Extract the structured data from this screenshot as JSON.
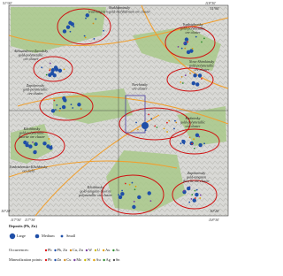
{
  "map": {
    "corner_labels": [
      "51°00'",
      "117°30'",
      "118°30'",
      "118°30'",
      "51°00'",
      "50°20'",
      "117°30'",
      "50°20'"
    ],
    "cluster_labels": [
      {
        "lines": [
          "Shakhtaminsky",
          "lead-tungsten-gold-molybdenum ore cluster"
        ]
      },
      {
        "lines": [
          "Vozdvizhensky",
          "gold-polymetallic",
          "ore cluster"
        ]
      },
      {
        "lines": [
          "Aleksandrovo-Zavodsky",
          "gold-polymetallic",
          "ore cluster"
        ]
      },
      {
        "lines": [
          "Novo-Shirokinsky",
          "gold-polymetallic",
          "ore cluster"
        ]
      },
      {
        "lines": [
          "Zapokrovsky",
          "gold-polymetallic",
          "ore cluster"
        ]
      },
      {
        "lines": [
          "Nerchinsky",
          "ore cluster"
        ]
      },
      {
        "lines": [
          "Klichkinsky",
          "gold-polymetallic",
          "fluorite ore cluster"
        ]
      },
      {
        "lines": [
          "Kadainsky",
          "gold-polymetallic",
          "ore cluster"
        ]
      },
      {
        "lines": [
          "Vozdvizhensko-Klichkinsky",
          "ore field"
        ]
      },
      {
        "lines": [
          "Klichkinsky",
          "gold-tungsten-fluorite",
          "polymetallic ore cluster"
        ]
      },
      {
        "lines": [
          "Zapokrovsky",
          "gold-tungsten",
          "fluorite ore cluster"
        ]
      }
    ]
  },
  "legend": {
    "title": "Deposits (Pb, Zn)",
    "sizes": [
      "Large",
      "Medium",
      "Small"
    ],
    "occurrences_label": "Occurrences:",
    "occurrence_elements": [
      {
        "label": "Pb",
        "color": "#e01b1b"
      },
      {
        "label": "Pb, Zn",
        "color": "#1f4fa8"
      },
      {
        "label": "Cu, Zn",
        "color": "#d08a1a"
      },
      {
        "label": "W",
        "color": "#7a3fa0"
      },
      {
        "label": "U",
        "color": "#c8b800"
      },
      {
        "label": "Au",
        "color": "#e0a000"
      },
      {
        "label": "As",
        "color": "#2f8f2f"
      }
    ],
    "mineralization_label": "Mineralization points:",
    "mineralization_elements": [
      {
        "label": "Pb",
        "color": "#e01b1b"
      },
      {
        "label": "Zn",
        "color": "#1f4fa8"
      },
      {
        "label": "Cu",
        "color": "#d08a1a"
      },
      {
        "label": "Mo",
        "color": "#7a3fa0"
      },
      {
        "label": "W",
        "color": "#c8b800"
      },
      {
        "label": "Au",
        "color": "#e0a000"
      },
      {
        "label": "Ag",
        "color": "#2f8f2f"
      },
      {
        "label": "Sn",
        "color": "#555555"
      }
    ]
  }
}
